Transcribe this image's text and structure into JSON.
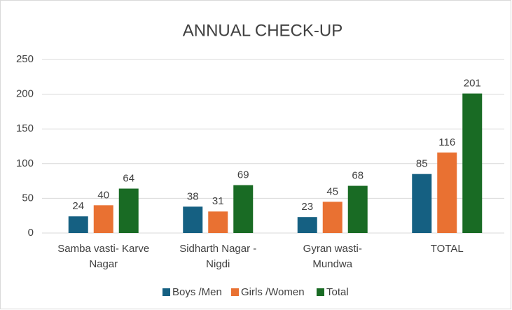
{
  "chart_data": {
    "type": "bar",
    "title": "ANNUAL CHECK-UP",
    "categories": [
      "Samba vasti- Karve Nagar",
      "Sidharth Nagar - Nigdi",
      "Gyran wasti- Mundwa",
      "TOTAL"
    ],
    "series": [
      {
        "name": "Boys /Men",
        "color": "#156082",
        "values": [
          24,
          38,
          23,
          85
        ]
      },
      {
        "name": "Girls /Women",
        "color": "#e97132",
        "values": [
          40,
          31,
          45,
          116
        ]
      },
      {
        "name": "Total",
        "color": "#196b24",
        "values": [
          64,
          69,
          68,
          201
        ]
      }
    ],
    "ylim": [
      0,
      250
    ],
    "yticks": [
      0,
      50,
      100,
      150,
      200,
      250
    ],
    "grid": true,
    "legend": "bottom"
  }
}
